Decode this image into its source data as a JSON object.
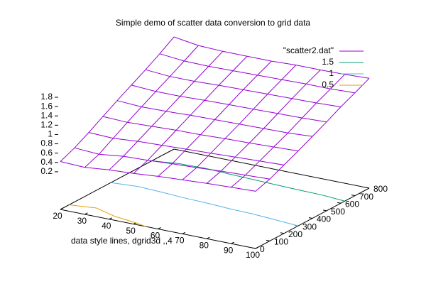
{
  "chart_data": {
    "type": "surface",
    "title": "Simple demo of scatter data conversion to grid data",
    "xlabel": "data style lines, dgrid3d ,,4",
    "x": [
      20,
      30,
      40,
      50,
      60,
      70,
      80,
      90,
      100
    ],
    "y": [
      0,
      100,
      200,
      300,
      400,
      500,
      600,
      700,
      800
    ],
    "z": [
      [
        0.42,
        0.4,
        0.45,
        0.48,
        0.52,
        0.55,
        0.58,
        0.6,
        0.62
      ],
      [
        0.55,
        0.52,
        0.58,
        0.6,
        0.63,
        0.65,
        0.68,
        0.7,
        0.72
      ],
      [
        0.72,
        0.7,
        0.74,
        0.76,
        0.78,
        0.8,
        0.82,
        0.84,
        0.86
      ],
      [
        0.9,
        0.88,
        0.9,
        0.92,
        0.93,
        0.95,
        0.96,
        0.98,
        1.0
      ],
      [
        1.08,
        1.05,
        1.06,
        1.08,
        1.09,
        1.1,
        1.11,
        1.12,
        1.15
      ],
      [
        1.25,
        1.22,
        1.22,
        1.24,
        1.25,
        1.26,
        1.27,
        1.28,
        1.3
      ],
      [
        1.42,
        1.38,
        1.38,
        1.4,
        1.41,
        1.42,
        1.43,
        1.44,
        1.46
      ],
      [
        1.6,
        1.55,
        1.54,
        1.55,
        1.56,
        1.57,
        1.58,
        1.58,
        1.6
      ],
      [
        1.8,
        1.72,
        1.7,
        1.7,
        1.7,
        1.72,
        1.72,
        1.73,
        1.75
      ]
    ],
    "series_name": "\"scatter2.dat\"",
    "color": "#9400d3",
    "contours": [
      {
        "level": 1.5,
        "color": "#009e73"
      },
      {
        "level": 1,
        "color": "#56b4e9"
      },
      {
        "level": 0.5,
        "color": "#e69f00"
      }
    ],
    "xlim": [
      20,
      100
    ],
    "ylim": [
      0,
      800
    ],
    "zlim": [
      0,
      1.8
    ],
    "xticks": [
      20,
      30,
      40,
      50,
      60,
      70,
      80,
      90,
      100
    ],
    "yticks": [
      0,
      100,
      200,
      300,
      400,
      500,
      600,
      700,
      800
    ],
    "zticks": [
      0.2,
      0.4,
      0.6,
      0.8,
      1,
      1.2,
      1.4,
      1.6,
      1.8
    ]
  }
}
